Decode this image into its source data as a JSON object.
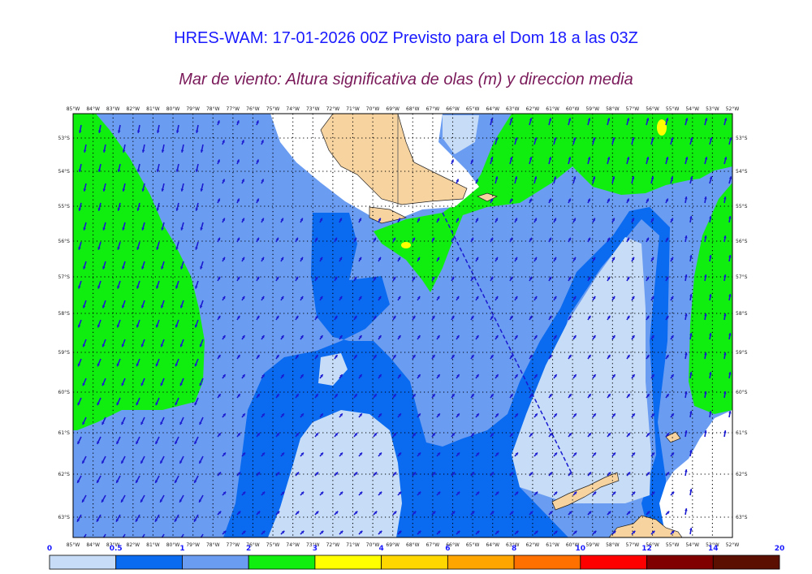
{
  "header": {
    "title": "HRES-WAM: 17-01-2026 00Z Previsto para el Dom 18 a las 03Z",
    "subtitle": "Mar de viento: Altura significativa de olas (m) y direccion media"
  },
  "map": {
    "lon_labels": [
      "85°W",
      "84°W",
      "83°W",
      "82°W",
      "81°W",
      "80°W",
      "79°W",
      "78°W",
      "77°W",
      "76°W",
      "75°W",
      "74°W",
      "73°W",
      "72°W",
      "71°W",
      "70°W",
      "69°W",
      "68°W",
      "67°W",
      "66°W",
      "65°W",
      "64°W",
      "63°W",
      "62°W",
      "61°W",
      "60°W",
      "59°W",
      "58°W",
      "57°W",
      "56°W",
      "55°W",
      "54°W",
      "53°W",
      "52°W"
    ],
    "lat_labels": [
      "53°S",
      "54°S",
      "55°S",
      "56°S",
      "57°S",
      "58°S",
      "59°S",
      "60°S",
      "61°S",
      "62°S",
      "63°S"
    ],
    "colors": {
      "bin_0": "#c6dcf7",
      "bin_1": "#0a6af0",
      "bin_2": "#6a9cf2",
      "bin_3": "#10ee10",
      "bin_4": "#ffff00",
      "bin_5": "#ffd700",
      "land": "#f7d3a0",
      "arrow": "#1a1ad0",
      "sea_ice": "#ffffff"
    }
  },
  "colorbar": {
    "levels": [
      "0",
      "0.5",
      "1",
      "2",
      "3",
      "4",
      "6",
      "8",
      "10",
      "12",
      "14",
      "20"
    ],
    "colors": [
      "#c6dcf7",
      "#0a6af0",
      "#6a9cf2",
      "#10ee10",
      "#ffff00",
      "#ffd700",
      "#ffa500",
      "#ff7000",
      "#ff0000",
      "#800000",
      "#5a0f00"
    ]
  }
}
